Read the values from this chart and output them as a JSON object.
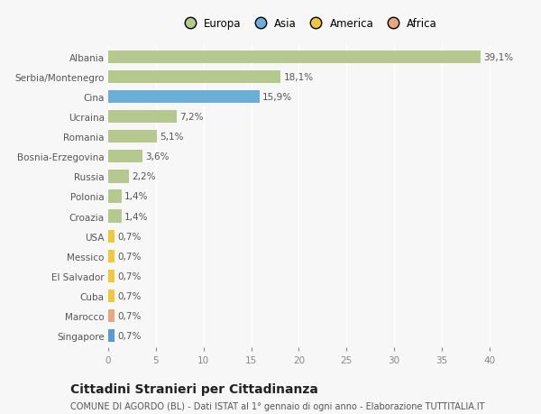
{
  "categories": [
    "Albania",
    "Serbia/Montenegro",
    "Cina",
    "Ucraina",
    "Romania",
    "Bosnia-Erzegovina",
    "Russia",
    "Polonia",
    "Croazia",
    "USA",
    "Messico",
    "El Salvador",
    "Cuba",
    "Marocco",
    "Singapore"
  ],
  "values": [
    39.1,
    18.1,
    15.9,
    7.2,
    5.1,
    3.6,
    2.2,
    1.4,
    1.4,
    0.7,
    0.7,
    0.7,
    0.7,
    0.7,
    0.7
  ],
  "labels": [
    "39,1%",
    "18,1%",
    "15,9%",
    "7,2%",
    "5,1%",
    "3,6%",
    "2,2%",
    "1,4%",
    "1,4%",
    "0,7%",
    "0,7%",
    "0,7%",
    "0,7%",
    "0,7%",
    "0,7%"
  ],
  "colors": [
    "#b5c98e",
    "#b5c98e",
    "#6baed6",
    "#b5c98e",
    "#b5c98e",
    "#b5c98e",
    "#b5c98e",
    "#b5c98e",
    "#b5c98e",
    "#f0c93a",
    "#f0c93a",
    "#f0c93a",
    "#f0c93a",
    "#e8a87c",
    "#5b9bd5"
  ],
  "legend_labels": [
    "Europa",
    "Asia",
    "America",
    "Africa"
  ],
  "legend_colors": [
    "#b5c98e",
    "#6baed6",
    "#f0c93a",
    "#e8a87c"
  ],
  "title": "Cittadini Stranieri per Cittadinanza",
  "subtitle": "COMUNE DI AGORDO (BL) - Dati ISTAT al 1° gennaio di ogni anno - Elaborazione TUTTITALIA.IT",
  "xlim": [
    0,
    42
  ],
  "xticks": [
    0,
    5,
    10,
    15,
    20,
    25,
    30,
    35,
    40
  ],
  "background_color": "#f7f7f7",
  "bar_height": 0.65,
  "label_fontsize": 7.5,
  "tick_fontsize": 7.5,
  "ytick_fontsize": 7.5,
  "title_fontsize": 10,
  "subtitle_fontsize": 7
}
